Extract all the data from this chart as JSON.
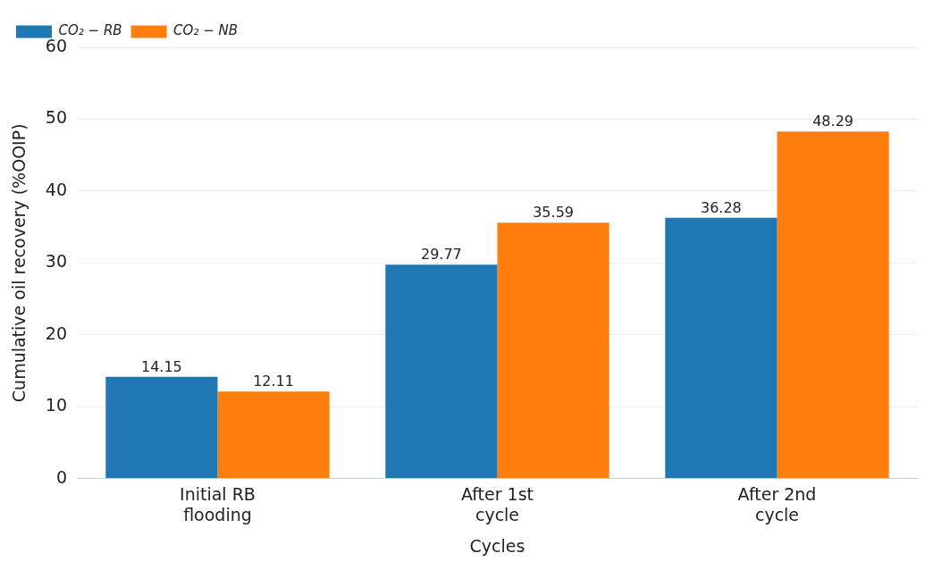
{
  "chart_data": {
    "type": "bar",
    "xlabel": "Cycles",
    "ylabel": "Cumulative oil recovery (%OOIP)",
    "categories": [
      "Initial RB flooding",
      "After 1st cycle",
      "After 2nd cycle"
    ],
    "series": [
      {
        "name": "CO₂ − RB",
        "color": "#1f77b4",
        "values": [
          14.15,
          29.77,
          36.28
        ]
      },
      {
        "name": "CO₂ − NB",
        "color": "#ff7f0e",
        "values": [
          12.11,
          35.59,
          48.29
        ]
      }
    ],
    "ylim": [
      0,
      60
    ],
    "yticks": [
      0,
      10,
      20,
      30,
      40,
      50,
      60
    ],
    "grid": "y",
    "legend": "top left",
    "data_labels": true
  }
}
